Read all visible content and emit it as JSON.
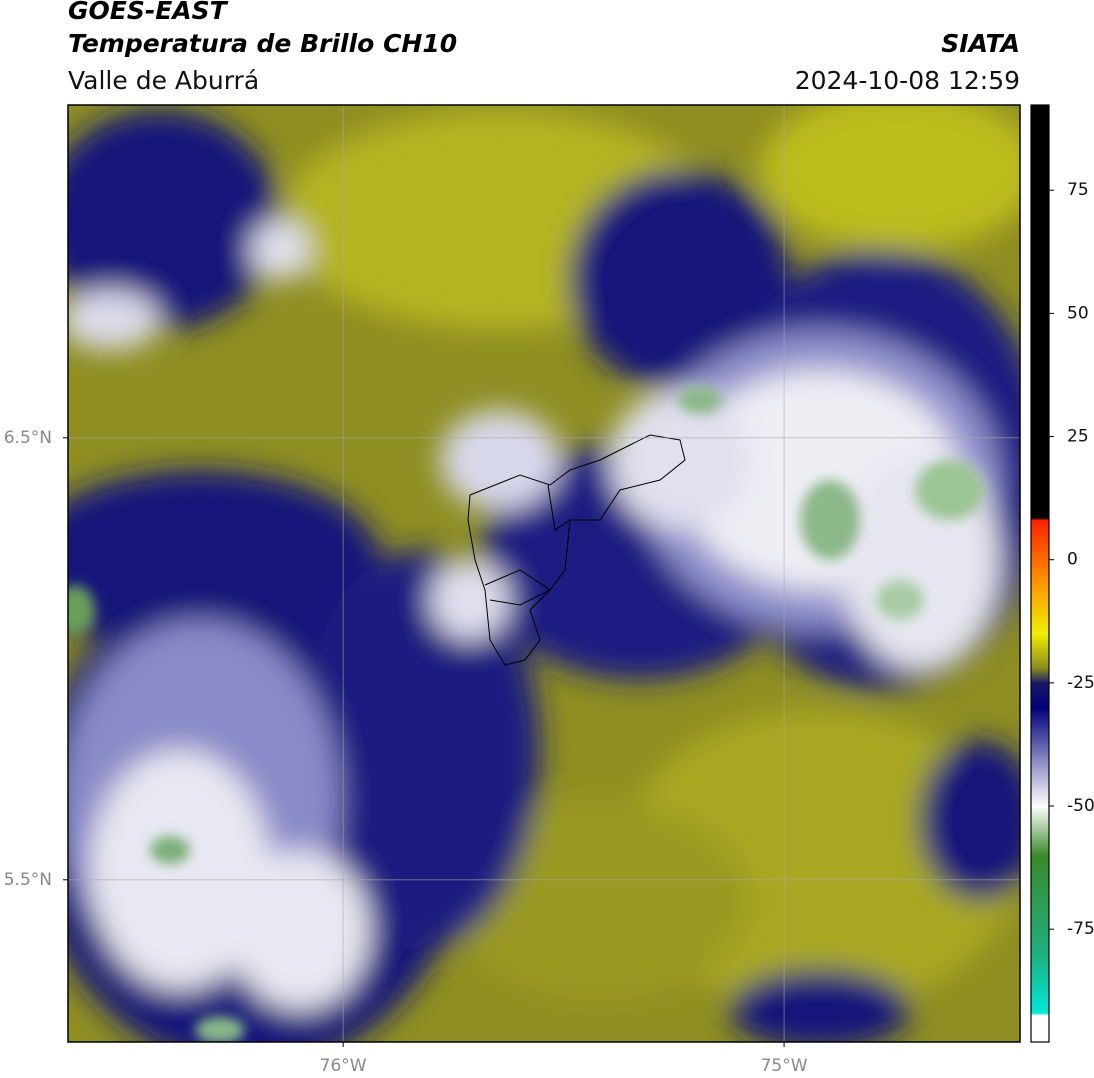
{
  "header": {
    "title": "GOES-EAST",
    "subtitle": "Temperatura de Brillo CH10",
    "source": "SIATA",
    "region": "Valle de Aburrá",
    "datetime": "2024-10-08 12:59"
  },
  "map": {
    "xlim": [
      -76.624,
      -74.465
    ],
    "ylim": [
      5.133,
      7.253
    ],
    "xticks": [
      {
        "value": -76,
        "label": "76°W"
      },
      {
        "value": -75,
        "label": "75°W"
      }
    ],
    "yticks": [
      {
        "value": 5.5,
        "label": "5.5°N"
      },
      {
        "value": 6.5,
        "label": "6.5°N"
      }
    ],
    "grid": true
  },
  "colorbar": {
    "lim": [
      -97.9,
      92.3
    ],
    "ticks": [
      -75,
      -50,
      -25,
      0,
      25,
      50,
      75
    ],
    "stops": [
      {
        "value": 92.3,
        "color": "#000000"
      },
      {
        "value": 8.5,
        "color": "#000000"
      },
      {
        "value": 8,
        "color": "#ff2000"
      },
      {
        "value": -5,
        "color": "#ff9900"
      },
      {
        "value": -15,
        "color": "#f0f000"
      },
      {
        "value": -22,
        "color": "#8a8a20"
      },
      {
        "value": -25,
        "color": "#1a1a6a"
      },
      {
        "value": -30,
        "color": "#00007a"
      },
      {
        "value": -40,
        "color": "#8080c0"
      },
      {
        "value": -50,
        "color": "#ffffff"
      },
      {
        "value": -60,
        "color": "#3a8a2a"
      },
      {
        "value": -80,
        "color": "#20b080"
      },
      {
        "value": -92,
        "color": "#00e8d8"
      },
      {
        "value": -92.5,
        "color": "#ffffff"
      },
      {
        "value": -97.9,
        "color": "#ffffff"
      }
    ]
  }
}
